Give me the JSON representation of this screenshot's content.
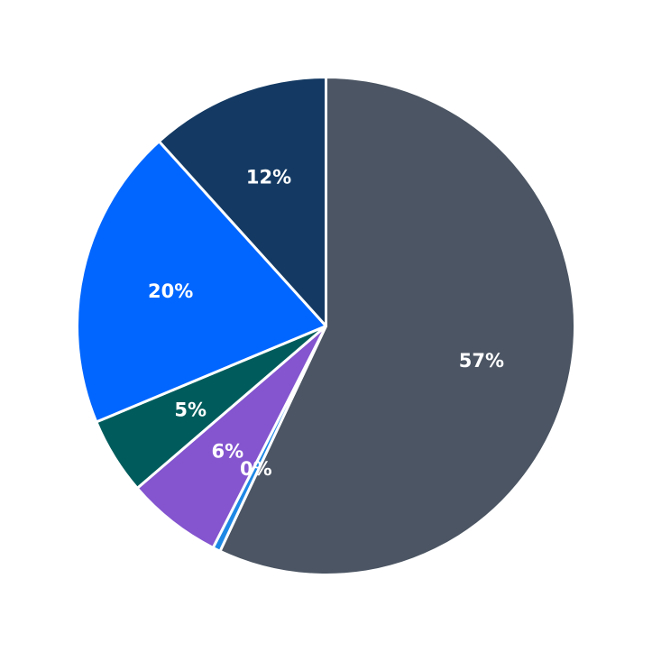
{
  "chart_data": {
    "type": "pie",
    "start_angle_deg": 90,
    "direction": "clockwise",
    "slices": [
      {
        "label": "",
        "value": 57.0,
        "display": "57%",
        "color": "#4b5563"
      },
      {
        "label": "",
        "value": 0.5,
        "display": "0%",
        "color": "#1e88e5"
      },
      {
        "label": "",
        "value": 6.2,
        "display": "6%",
        "color": "#8455cf"
      },
      {
        "label": "",
        "value": 5.0,
        "display": "5%",
        "color": "#005c5c"
      },
      {
        "label": "",
        "value": 19.6,
        "display": "20%",
        "color": "#0066ff"
      },
      {
        "label": "",
        "value": 11.7,
        "display": "12%",
        "color": "#143a63"
      }
    ]
  }
}
